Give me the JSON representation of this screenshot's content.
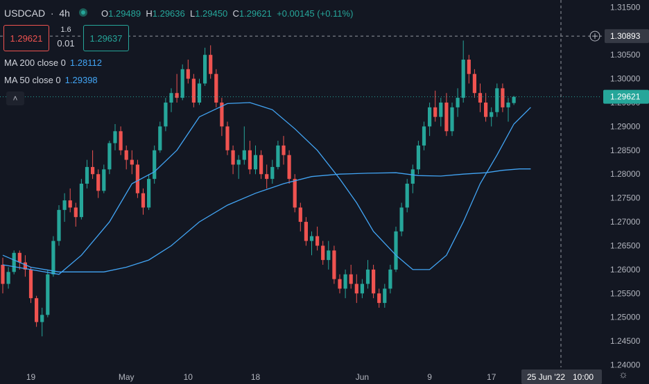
{
  "header": {
    "symbol": "USDCAD",
    "interval": "4h",
    "open_label": "O",
    "open": "1.29489",
    "high_label": "H",
    "high": "1.29636",
    "low_label": "L",
    "low": "1.29450",
    "close_label": "C",
    "close": "1.29621",
    "change": "+0.00145 (+0.11%)"
  },
  "trade": {
    "sell_price": "1.29621",
    "buy_price": "1.29637",
    "spread_top": "1.6",
    "spread_bottom": "0.01"
  },
  "indicators": [
    {
      "label": "MA 200 close 0",
      "value": "1.28112"
    },
    {
      "label": "MA 50 close 0",
      "value": "1.29398"
    }
  ],
  "colors": {
    "background": "#131722",
    "up": "#26a69a",
    "down": "#ef5350",
    "ma": "#42a5f5",
    "axis_text": "#b2b5be",
    "price_tag": "#26a69a"
  },
  "icons": {
    "collapse": "chevron-up-icon",
    "crosshair": "plus-circle-icon",
    "settings": "gear-icon",
    "live": "live-dot-icon"
  },
  "chart_data": {
    "type": "candlestick",
    "y_ticks": [
      "1.31500",
      "1.30500",
      "1.30000",
      "1.29500",
      "1.29000",
      "1.28500",
      "1.28000",
      "1.27500",
      "1.27000",
      "1.26500",
      "1.26000",
      "1.25500",
      "1.25000",
      "1.24500",
      "1.24000"
    ],
    "y_tick_values": [
      1.315,
      1.305,
      1.3,
      1.295,
      1.29,
      1.285,
      1.28,
      1.275,
      1.27,
      1.265,
      1.26,
      1.255,
      1.25,
      1.245,
      1.24
    ],
    "ylim": [
      1.2395,
      1.3165
    ],
    "x_ticks": [
      {
        "label": "19",
        "bar": 5
      },
      {
        "label": "May",
        "bar": 22
      },
      {
        "label": "10",
        "bar": 33
      },
      {
        "label": "18",
        "bar": 45
      },
      {
        "label": "Jun",
        "bar": 64
      },
      {
        "label": "9",
        "bar": 76
      },
      {
        "label": "17",
        "bar": 87
      }
    ],
    "crosshair_date": "25 Jun '22",
    "crosshair_time": "10:00",
    "crosshair_price": "1.30893",
    "crosshair_price_value": 1.30893,
    "last_price": "1.29621",
    "last_price_value": 1.29621,
    "ma50": [
      [
        0,
        1.261
      ],
      [
        5,
        1.26
      ],
      [
        10,
        1.259
      ],
      [
        14,
        1.263
      ],
      [
        19,
        1.27
      ],
      [
        23,
        1.278
      ],
      [
        27,
        1.2805
      ],
      [
        31,
        1.285
      ],
      [
        35,
        1.292
      ],
      [
        40,
        1.2948
      ],
      [
        44,
        1.295
      ],
      [
        48,
        1.2935
      ],
      [
        52,
        1.2895
      ],
      [
        56,
        1.285
      ],
      [
        60,
        1.279
      ],
      [
        63,
        1.274
      ],
      [
        66,
        1.268
      ],
      [
        70,
        1.263
      ],
      [
        73,
        1.26
      ],
      [
        76,
        1.26
      ],
      [
        79,
        1.263
      ],
      [
        82,
        1.27
      ],
      [
        85,
        1.278
      ],
      [
        88,
        1.284
      ],
      [
        91,
        1.2905
      ],
      [
        94,
        1.294
      ]
    ],
    "ma200": [
      [
        0,
        1.263
      ],
      [
        5,
        1.2605
      ],
      [
        10,
        1.2595
      ],
      [
        15,
        1.2595
      ],
      [
        18,
        1.2595
      ],
      [
        22,
        1.2605
      ],
      [
        26,
        1.262
      ],
      [
        30,
        1.265
      ],
      [
        35,
        1.27
      ],
      [
        40,
        1.2735
      ],
      [
        45,
        1.276
      ],
      [
        50,
        1.278
      ],
      [
        55,
        1.2795
      ],
      [
        60,
        1.28
      ],
      [
        65,
        1.2802
      ],
      [
        70,
        1.2803
      ],
      [
        74,
        1.2797
      ],
      [
        78,
        1.2796
      ],
      [
        82,
        1.28
      ],
      [
        86,
        1.2803
      ],
      [
        89,
        1.2808
      ],
      [
        92,
        1.2811
      ],
      [
        94,
        1.2811
      ]
    ],
    "ohlc": [
      [
        1.261,
        1.2625,
        1.255,
        1.257
      ],
      [
        1.257,
        1.2605,
        1.256,
        1.2595
      ],
      [
        1.2595,
        1.264,
        1.259,
        1.2635
      ],
      [
        1.2635,
        1.264,
        1.26,
        1.2615
      ],
      [
        1.2615,
        1.263,
        1.2585,
        1.26
      ],
      [
        1.26,
        1.2605,
        1.253,
        1.254
      ],
      [
        1.254,
        1.2545,
        1.248,
        1.249
      ],
      [
        1.249,
        1.252,
        1.246,
        1.2505
      ],
      [
        1.2505,
        1.26,
        1.25,
        1.259
      ],
      [
        1.259,
        1.267,
        1.2585,
        1.266
      ],
      [
        1.266,
        1.2735,
        1.265,
        1.2725
      ],
      [
        1.2725,
        1.276,
        1.27,
        1.2745
      ],
      [
        1.2745,
        1.277,
        1.272,
        1.273
      ],
      [
        1.273,
        1.274,
        1.269,
        1.271
      ],
      [
        1.271,
        1.279,
        1.2705,
        1.278
      ],
      [
        1.278,
        1.283,
        1.277,
        1.2815
      ],
      [
        1.2815,
        1.285,
        1.279,
        1.28
      ],
      [
        1.28,
        1.281,
        1.275,
        1.2765
      ],
      [
        1.2765,
        1.282,
        1.276,
        1.281
      ],
      [
        1.281,
        1.287,
        1.28,
        1.2865
      ],
      [
        1.2865,
        1.2905,
        1.285,
        1.289
      ],
      [
        1.289,
        1.29,
        1.284,
        1.285
      ],
      [
        1.285,
        1.286,
        1.281,
        1.283
      ],
      [
        1.283,
        1.285,
        1.28,
        1.282
      ],
      [
        1.282,
        1.283,
        1.275,
        1.276
      ],
      [
        1.276,
        1.277,
        1.2715,
        1.273
      ],
      [
        1.273,
        1.28,
        1.2725,
        1.279
      ],
      [
        1.279,
        1.286,
        1.278,
        1.285
      ],
      [
        1.285,
        1.291,
        1.2845,
        1.29
      ],
      [
        1.29,
        1.296,
        1.289,
        1.295
      ],
      [
        1.295,
        1.298,
        1.293,
        1.297
      ],
      [
        1.297,
        1.301,
        1.295,
        1.296
      ],
      [
        1.296,
        1.303,
        1.2955,
        1.302
      ],
      [
        1.302,
        1.304,
        1.299,
        1.3
      ],
      [
        1.3,
        1.301,
        1.294,
        1.295
      ],
      [
        1.295,
        1.3,
        1.2945,
        1.299
      ],
      [
        1.299,
        1.3065,
        1.2985,
        1.305
      ],
      [
        1.305,
        1.307,
        1.3,
        1.301
      ],
      [
        1.301,
        1.302,
        1.294,
        1.295
      ],
      [
        1.295,
        1.296,
        1.288,
        1.29
      ],
      [
        1.29,
        1.291,
        1.284,
        1.285
      ],
      [
        1.285,
        1.286,
        1.28,
        1.282
      ],
      [
        1.282,
        1.284,
        1.279,
        1.283
      ],
      [
        1.283,
        1.29,
        1.282,
        1.285
      ],
      [
        1.285,
        1.287,
        1.28,
        1.281
      ],
      [
        1.281,
        1.286,
        1.28,
        1.284
      ],
      [
        1.284,
        1.285,
        1.279,
        1.28
      ],
      [
        1.28,
        1.282,
        1.277,
        1.279
      ],
      [
        1.279,
        1.283,
        1.278,
        1.2815
      ],
      [
        1.2815,
        1.287,
        1.281,
        1.286
      ],
      [
        1.286,
        1.288,
        1.282,
        1.284
      ],
      [
        1.284,
        1.285,
        1.278,
        1.279
      ],
      [
        1.279,
        1.28,
        1.272,
        1.273
      ],
      [
        1.273,
        1.274,
        1.268,
        1.27
      ],
      [
        1.27,
        1.271,
        1.265,
        1.266
      ],
      [
        1.266,
        1.268,
        1.263,
        1.267
      ],
      [
        1.267,
        1.269,
        1.264,
        1.265
      ],
      [
        1.265,
        1.266,
        1.261,
        1.262
      ],
      [
        1.262,
        1.266,
        1.26,
        1.264
      ],
      [
        1.264,
        1.265,
        1.257,
        1.258
      ],
      [
        1.258,
        1.259,
        1.255,
        1.256
      ],
      [
        1.256,
        1.26,
        1.254,
        1.259
      ],
      [
        1.259,
        1.261,
        1.256,
        1.257
      ],
      [
        1.257,
        1.259,
        1.253,
        1.255
      ],
      [
        1.255,
        1.258,
        1.254,
        1.257
      ],
      [
        1.257,
        1.262,
        1.256,
        1.26
      ],
      [
        1.26,
        1.261,
        1.254,
        1.255
      ],
      [
        1.255,
        1.256,
        1.252,
        1.253
      ],
      [
        1.253,
        1.257,
        1.252,
        1.256
      ],
      [
        1.256,
        1.261,
        1.255,
        1.26
      ],
      [
        1.26,
        1.269,
        1.2595,
        1.268
      ],
      [
        1.268,
        1.274,
        1.267,
        1.273
      ],
      [
        1.273,
        1.279,
        1.272,
        1.278
      ],
      [
        1.278,
        1.282,
        1.276,
        1.281
      ],
      [
        1.281,
        1.287,
        1.28,
        1.286
      ],
      [
        1.286,
        1.291,
        1.285,
        1.29
      ],
      [
        1.29,
        1.295,
        1.288,
        1.294
      ],
      [
        1.294,
        1.2975,
        1.291,
        1.292
      ],
      [
        1.292,
        1.296,
        1.29,
        1.295
      ],
      [
        1.295,
        1.297,
        1.288,
        1.289
      ],
      [
        1.289,
        1.295,
        1.288,
        1.294
      ],
      [
        1.294,
        1.298,
        1.292,
        1.296
      ],
      [
        1.296,
        1.308,
        1.295,
        1.304
      ],
      [
        1.304,
        1.305,
        1.299,
        1.301
      ],
      [
        1.301,
        1.302,
        1.296,
        1.297
      ],
      [
        1.297,
        1.299,
        1.293,
        1.295
      ],
      [
        1.295,
        1.297,
        1.291,
        1.292
      ],
      [
        1.292,
        1.294,
        1.29,
        1.293
      ],
      [
        1.293,
        1.299,
        1.292,
        1.298
      ],
      [
        1.298,
        1.299,
        1.293,
        1.294
      ],
      [
        1.294,
        1.296,
        1.291,
        1.295
      ],
      [
        1.2949,
        1.2964,
        1.2945,
        1.2962
      ]
    ]
  }
}
